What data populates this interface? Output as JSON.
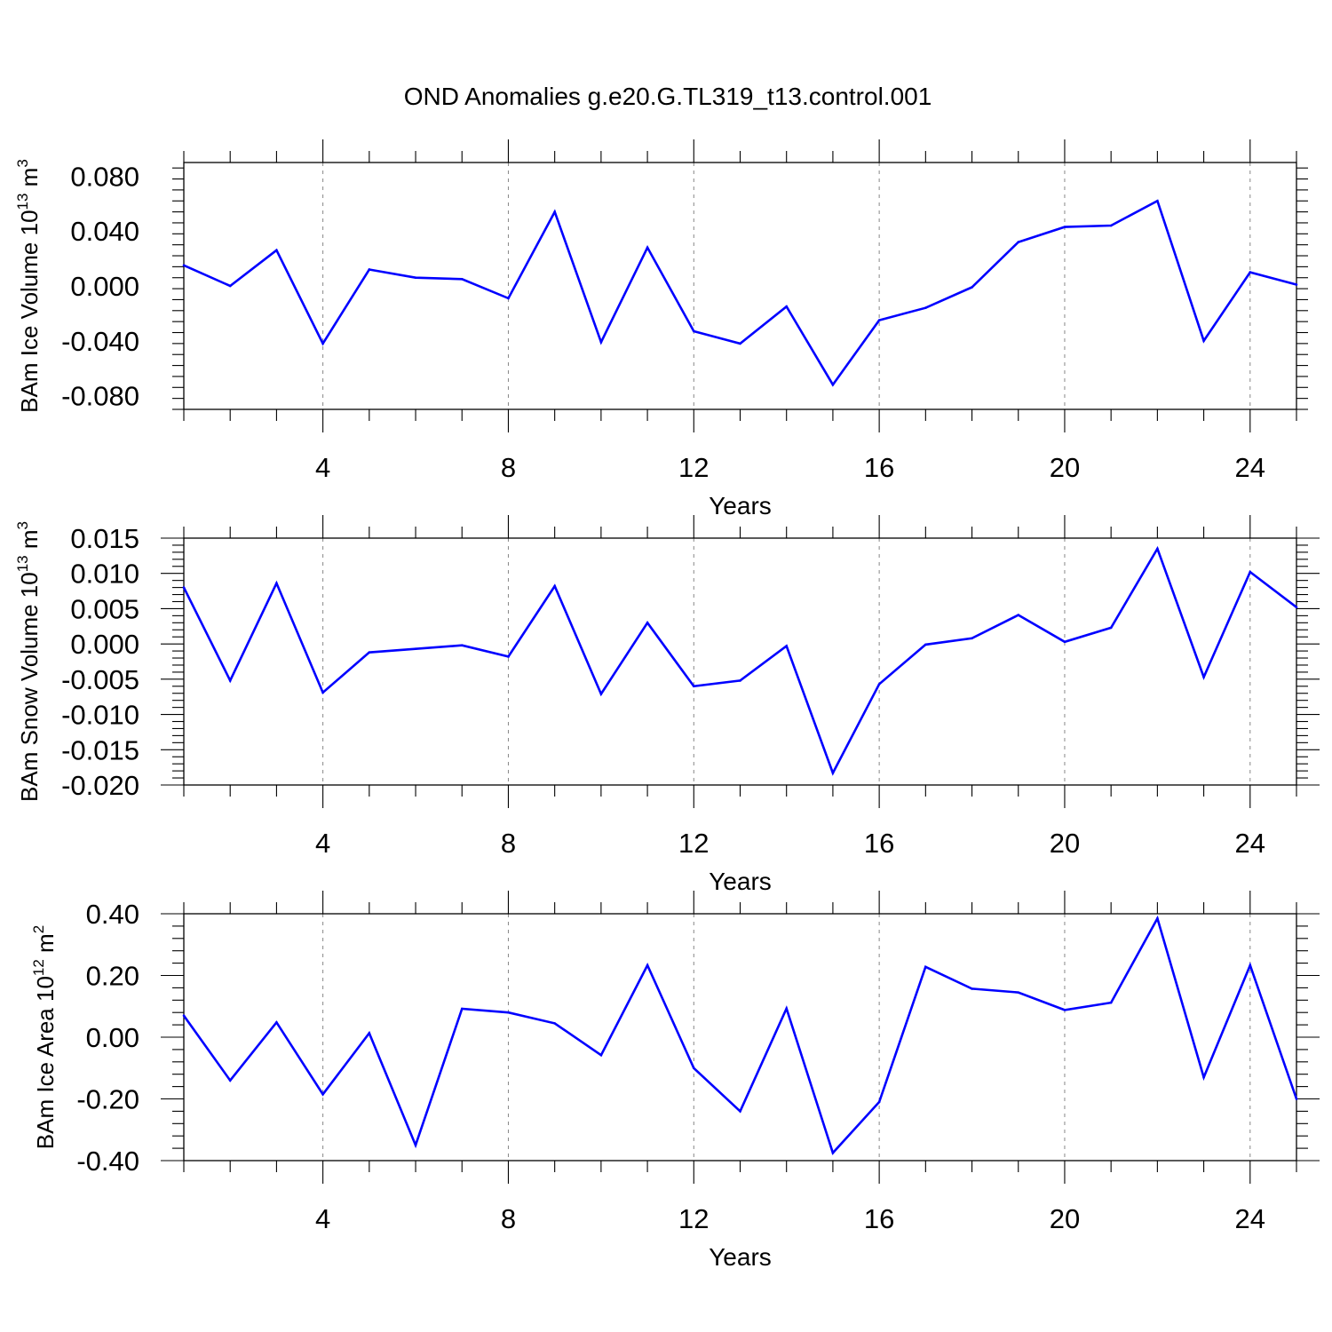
{
  "title": "OND Anomalies g.e20.G.TL319_t13.control.001",
  "colors": {
    "line": "#0000ff",
    "axis": "#000000",
    "grid": "#888888"
  },
  "chart_data": [
    {
      "type": "line",
      "xlabel": "Years",
      "ylabel": {
        "main": "BAm Ice Volume 10",
        "sup": "13",
        "tail": " m",
        "sup2": "3"
      },
      "xlim": [
        1,
        25
      ],
      "ylim": [
        -0.09,
        0.09
      ],
      "xticks": [
        4,
        8,
        12,
        16,
        20,
        24
      ],
      "xtick_labels": [
        "4",
        "8",
        "12",
        "16",
        "20",
        "24"
      ],
      "yticks": [
        0.08,
        0.04,
        0.0,
        -0.04,
        -0.08
      ],
      "ytick_labels": [
        "0.080",
        "0.040",
        "0.000",
        "-0.040",
        "-0.080"
      ],
      "grid": "dashed vertical at major x ticks",
      "series": [
        {
          "name": "BAm Ice Volume",
          "x": [
            1,
            2,
            3,
            4,
            5,
            6,
            7,
            8,
            9,
            10,
            11,
            12,
            13,
            14,
            15,
            16,
            17,
            18,
            19,
            20,
            21,
            22,
            23,
            24,
            25
          ],
          "values": [
            0.015,
            0.0,
            0.026,
            -0.042,
            0.012,
            0.006,
            0.005,
            -0.009,
            0.054,
            -0.041,
            0.028,
            -0.033,
            -0.042,
            -0.015,
            -0.072,
            -0.025,
            -0.016,
            -0.001,
            0.032,
            0.043,
            0.044,
            0.062,
            -0.04,
            0.01,
            0.001
          ]
        }
      ]
    },
    {
      "type": "line",
      "xlabel": "Years",
      "ylabel": {
        "main": "BAm Snow Volume 10",
        "sup": "13",
        "tail": " m",
        "sup2": "3"
      },
      "xlim": [
        1,
        25
      ],
      "ylim": [
        -0.02,
        0.015
      ],
      "xticks": [
        4,
        8,
        12,
        16,
        20,
        24
      ],
      "xtick_labels": [
        "4",
        "8",
        "12",
        "16",
        "20",
        "24"
      ],
      "yticks": [
        0.015,
        0.01,
        0.005,
        0.0,
        -0.005,
        -0.01,
        -0.015,
        -0.02
      ],
      "ytick_labels": [
        "0.015",
        "0.010",
        "0.005",
        "0.000",
        "-0.005",
        "-0.010",
        "-0.015",
        "-0.020"
      ],
      "grid": "dashed vertical at major x ticks",
      "series": [
        {
          "name": "BAm Snow Volume",
          "x": [
            1,
            2,
            3,
            4,
            5,
            6,
            7,
            8,
            9,
            10,
            11,
            12,
            13,
            14,
            15,
            16,
            17,
            18,
            19,
            20,
            21,
            22,
            23,
            24,
            25
          ],
          "values": [
            0.008,
            -0.0052,
            0.0086,
            -0.0069,
            -0.0012,
            -0.0007,
            -0.0002,
            -0.0018,
            0.0082,
            -0.0071,
            0.003,
            -0.006,
            -0.0052,
            -0.0003,
            -0.0183,
            -0.0057,
            -0.0001,
            0.0008,
            0.0041,
            0.0003,
            0.0023,
            0.0135,
            -0.0047,
            0.0102,
            0.0052
          ]
        }
      ]
    },
    {
      "type": "line",
      "xlabel": "Years",
      "ylabel": {
        "main": "BAm Ice Area 10",
        "sup": "12",
        "tail": " m",
        "sup2": "2"
      },
      "xlim": [
        1,
        25
      ],
      "ylim": [
        -0.4,
        0.4
      ],
      "xticks": [
        4,
        8,
        12,
        16,
        20,
        24
      ],
      "xtick_labels": [
        "4",
        "8",
        "12",
        "16",
        "20",
        "24"
      ],
      "yticks": [
        0.4,
        0.2,
        0.0,
        -0.2,
        -0.4
      ],
      "ytick_labels": [
        "0.40",
        "0.20",
        "0.00",
        "-0.20",
        "-0.40"
      ],
      "grid": "dashed vertical at major x ticks",
      "series": [
        {
          "name": "BAm Ice Area",
          "x": [
            1,
            2,
            3,
            4,
            5,
            6,
            7,
            8,
            9,
            10,
            11,
            12,
            13,
            14,
            15,
            16,
            17,
            18,
            19,
            20,
            21,
            22,
            23,
            24,
            25
          ],
          "values": [
            0.07,
            -0.14,
            0.048,
            -0.185,
            0.013,
            -0.35,
            0.092,
            0.08,
            0.045,
            -0.058,
            0.233,
            -0.1,
            -0.24,
            0.093,
            -0.375,
            -0.21,
            0.228,
            0.157,
            0.145,
            0.088,
            0.112,
            0.385,
            -0.13,
            0.233,
            -0.2
          ]
        }
      ]
    }
  ]
}
